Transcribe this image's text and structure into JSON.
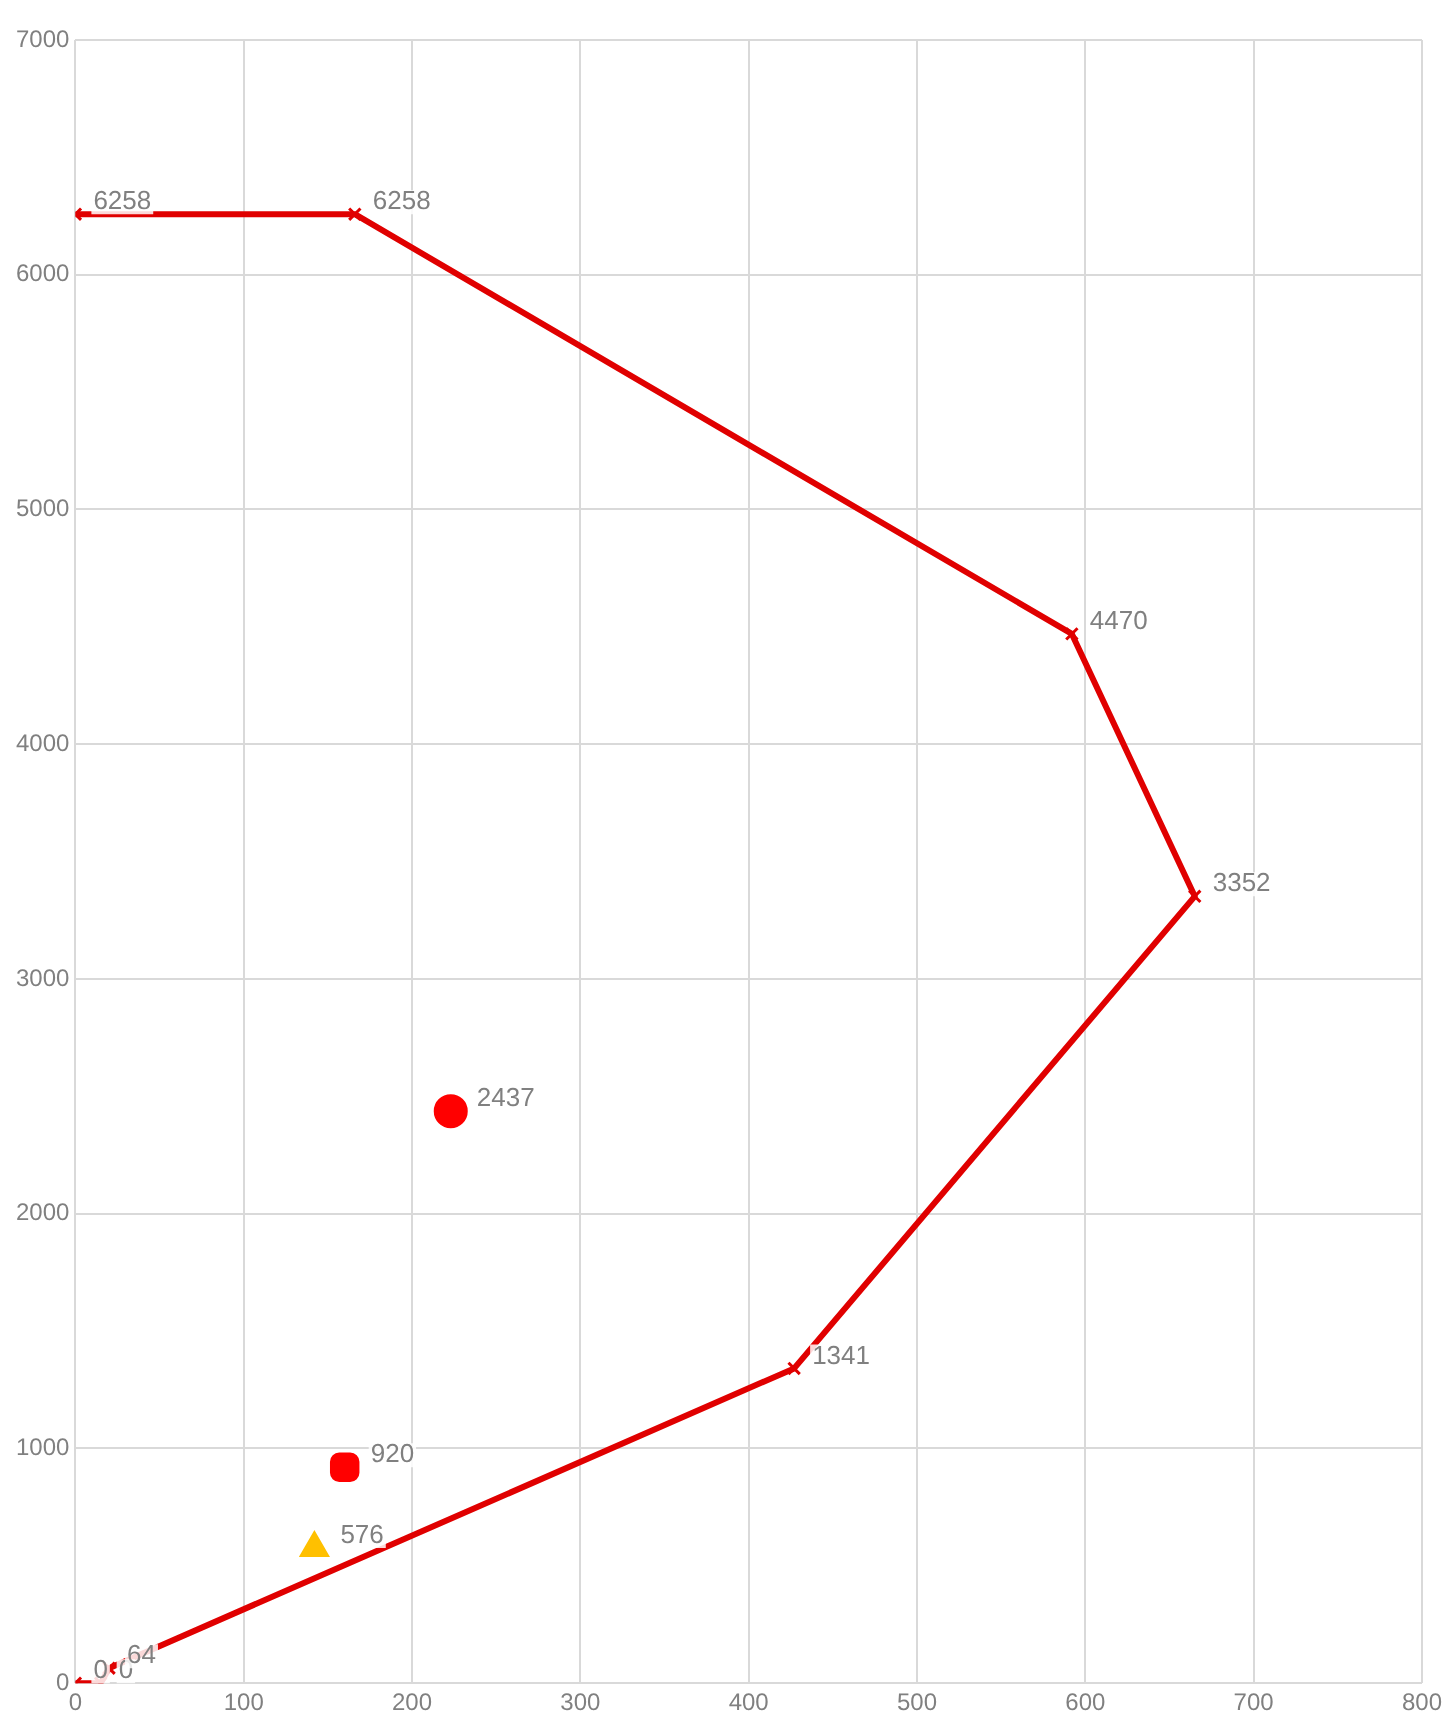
{
  "chart_data": {
    "type": "scatter",
    "xlim": [
      0,
      800
    ],
    "xticks": [
      0,
      100,
      200,
      300,
      400,
      500,
      600,
      700,
      800
    ],
    "ylim": [
      0,
      7000
    ],
    "yticks": [
      0,
      1000,
      2000,
      3000,
      4000,
      5000,
      6000,
      7000
    ],
    "grid": true,
    "legend": false,
    "data_labels": true,
    "series": [
      {
        "type": "line",
        "color": "#e00000",
        "marker": "cross",
        "line_style": "solid",
        "x": [
          0,
          15,
          20,
          427,
          665,
          592,
          166,
          0
        ],
        "values": [
          0,
          0,
          64,
          1341,
          3352,
          4470,
          6258,
          6258
        ]
      },
      {
        "color": "#ffc000",
        "marker": "triangle",
        "x": [
          142
        ],
        "values": [
          576
        ]
      },
      {
        "color": "#ff0000",
        "marker": "square",
        "x": [
          160
        ],
        "values": [
          920
        ]
      },
      {
        "color": "#ff0000",
        "marker": "circle",
        "x": [
          223
        ],
        "values": [
          2437
        ]
      }
    ]
  }
}
